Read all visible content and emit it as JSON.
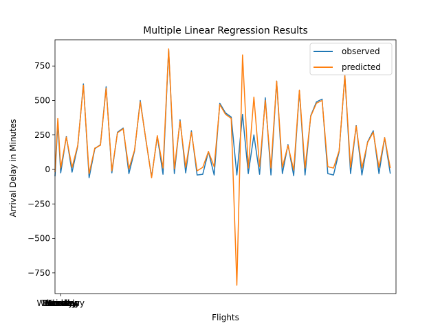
{
  "chart_data": {
    "type": "line",
    "title": "Multiple Linear Regression Results",
    "xlabel": "Flights",
    "ylabel": "Arrival Delay in Minutes",
    "xlim": [
      0,
      60
    ],
    "ylim": [
      -900,
      940
    ],
    "y_ticks": [
      -750,
      -500,
      -250,
      0,
      250,
      500,
      750
    ],
    "x_tick_labels": [
      "Monday",
      "Friday",
      "Sunday",
      "Saturday",
      "Sunday",
      "Tuesday",
      "Wednesday",
      "Thursday",
      "Friday"
    ],
    "legend_position": "top-right",
    "grid": false,
    "series": [
      {
        "name": "observed",
        "color": "#1f77b4",
        "points": [
          [
            0,
            -50
          ],
          [
            0.5,
            340
          ],
          [
            1,
            -25
          ],
          [
            2,
            240
          ],
          [
            3,
            -20
          ],
          [
            4,
            170
          ],
          [
            5,
            620
          ],
          [
            6,
            -60
          ],
          [
            7,
            150
          ],
          [
            8,
            180
          ],
          [
            9,
            600
          ],
          [
            10,
            -25
          ],
          [
            11,
            270
          ],
          [
            12,
            300
          ],
          [
            13,
            -30
          ],
          [
            14,
            135
          ],
          [
            15,
            500
          ],
          [
            16,
            210
          ],
          [
            17,
            -55
          ],
          [
            18,
            240
          ],
          [
            19,
            -35
          ],
          [
            20,
            870
          ],
          [
            21,
            -30
          ],
          [
            22,
            360
          ],
          [
            23,
            -25
          ],
          [
            24,
            280
          ],
          [
            25,
            -40
          ],
          [
            26,
            -35
          ],
          [
            27,
            130
          ],
          [
            28,
            -40
          ],
          [
            29,
            480
          ],
          [
            30,
            410
          ],
          [
            31,
            380
          ],
          [
            32,
            -40
          ],
          [
            33,
            400
          ],
          [
            34,
            -30
          ],
          [
            35,
            250
          ],
          [
            36,
            -35
          ],
          [
            37,
            520
          ],
          [
            38,
            -40
          ],
          [
            39,
            640
          ],
          [
            40,
            -30
          ],
          [
            41,
            180
          ],
          [
            42,
            -45
          ],
          [
            43,
            570
          ],
          [
            44,
            -40
          ],
          [
            45,
            390
          ],
          [
            46,
            490
          ],
          [
            47,
            510
          ],
          [
            48,
            -30
          ],
          [
            49,
            -40
          ],
          [
            50,
            130
          ],
          [
            51,
            680
          ],
          [
            52,
            -30
          ],
          [
            53,
            320
          ],
          [
            54,
            -40
          ],
          [
            55,
            200
          ],
          [
            56,
            280
          ],
          [
            57,
            -30
          ],
          [
            58,
            230
          ],
          [
            59,
            -30
          ]
        ]
      },
      {
        "name": "predicted",
        "color": "#ff7f0e",
        "points": [
          [
            0,
            -20
          ],
          [
            0.5,
            370
          ],
          [
            1,
            10
          ],
          [
            2,
            235
          ],
          [
            3,
            15
          ],
          [
            4,
            175
          ],
          [
            5,
            610
          ],
          [
            6,
            -30
          ],
          [
            7,
            155
          ],
          [
            8,
            175
          ],
          [
            9,
            590
          ],
          [
            10,
            -10
          ],
          [
            11,
            265
          ],
          [
            12,
            295
          ],
          [
            13,
            5
          ],
          [
            14,
            140
          ],
          [
            15,
            490
          ],
          [
            16,
            215
          ],
          [
            17,
            -60
          ],
          [
            18,
            245
          ],
          [
            19,
            10
          ],
          [
            20,
            875
          ],
          [
            21,
            5
          ],
          [
            22,
            350
          ],
          [
            23,
            15
          ],
          [
            24,
            270
          ],
          [
            25,
            -10
          ],
          [
            26,
            15
          ],
          [
            27,
            130
          ],
          [
            28,
            20
          ],
          [
            29,
            470
          ],
          [
            30,
            400
          ],
          [
            31,
            370
          ],
          [
            32,
            -840
          ],
          [
            33,
            830
          ],
          [
            34,
            10
          ],
          [
            35,
            525
          ],
          [
            36,
            20
          ],
          [
            37,
            500
          ],
          [
            38,
            10
          ],
          [
            39,
            640
          ],
          [
            40,
            15
          ],
          [
            41,
            175
          ],
          [
            42,
            -5
          ],
          [
            43,
            575
          ],
          [
            44,
            10
          ],
          [
            45,
            385
          ],
          [
            46,
            480
          ],
          [
            47,
            500
          ],
          [
            48,
            20
          ],
          [
            49,
            10
          ],
          [
            50,
            135
          ],
          [
            51,
            680
          ],
          [
            52,
            15
          ],
          [
            53,
            315
          ],
          [
            54,
            10
          ],
          [
            55,
            195
          ],
          [
            56,
            270
          ],
          [
            57,
            15
          ],
          [
            58,
            230
          ],
          [
            59,
            10
          ]
        ]
      }
    ]
  }
}
